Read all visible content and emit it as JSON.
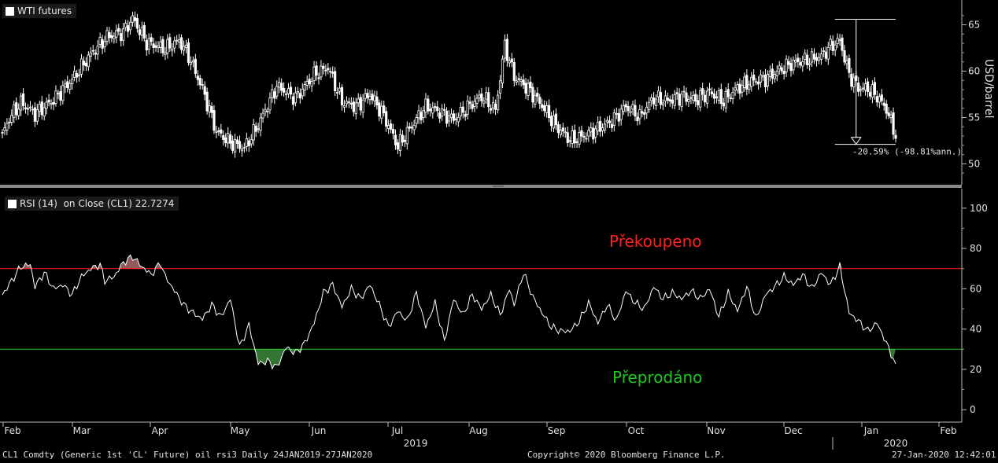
{
  "price_panel": {
    "legend": "WTI futures",
    "yaxis_label": "USD/barrel",
    "annotation": "-20.59% (-98.81%ann.)"
  },
  "rsi_panel": {
    "legend": "RSI (14)  on Close (CL1) 22.7274",
    "overbought_label": "Překoupeno",
    "oversold_label": "Přeprodáno",
    "overbought_color": "#ff2020",
    "oversold_color": "#1ec81e"
  },
  "footer": {
    "left": "CL1 Comdty (Generic 1st 'CL' Future) oil rsi3  Daily 24JAN2019-27JAN2020",
    "center": "Copyright© 2020 Bloomberg Finance L.P.",
    "right": "27-Jan-2020 12:42:01"
  },
  "chart_data": [
    {
      "type": "candlestick",
      "title": "WTI futures",
      "ylabel": "USD/barrel",
      "ylim": [
        48,
        67
      ],
      "yticks": [
        50,
        55,
        60,
        65
      ],
      "x_ticks": [
        "Feb",
        "Mar",
        "Apr",
        "May",
        "Jun",
        "Jul",
        "Aug",
        "Sep",
        "Oct",
        "Nov",
        "Dec",
        "Jan",
        "Feb"
      ],
      "year_labels": [
        "2019",
        "2020"
      ],
      "close_keypoints": [
        [
          0,
          53.1
        ],
        [
          3,
          54.9
        ],
        [
          8,
          56.6
        ],
        [
          14,
          55.4
        ],
        [
          22,
          56.9
        ],
        [
          30,
          59.1
        ],
        [
          38,
          61.8
        ],
        [
          45,
          63.7
        ],
        [
          52,
          64.2
        ],
        [
          56,
          65.7
        ],
        [
          62,
          63.1
        ],
        [
          70,
          62.4
        ],
        [
          76,
          63.3
        ],
        [
          80,
          61.7
        ],
        [
          86,
          58.1
        ],
        [
          92,
          53.5
        ],
        [
          98,
          52.3
        ],
        [
          104,
          51.7
        ],
        [
          110,
          54.2
        ],
        [
          118,
          58.4
        ],
        [
          126,
          57.1
        ],
        [
          134,
          59.6
        ],
        [
          140,
          60.4
        ],
        [
          146,
          56.7
        ],
        [
          152,
          56.2
        ],
        [
          158,
          57.5
        ],
        [
          164,
          55.2
        ],
        [
          170,
          51.9
        ],
        [
          176,
          54.1
        ],
        [
          182,
          56.2
        ],
        [
          188,
          55.6
        ],
        [
          194,
          54.8
        ],
        [
          200,
          56.1
        ],
        [
          206,
          57.3
        ],
        [
          212,
          55.8
        ],
        [
          216,
          62.8
        ],
        [
          220,
          59.4
        ],
        [
          226,
          58.1
        ],
        [
          232,
          56.3
        ],
        [
          238,
          54.1
        ],
        [
          244,
          52.6
        ],
        [
          250,
          53.0
        ],
        [
          256,
          53.8
        ],
        [
          262,
          54.6
        ],
        [
          268,
          56.2
        ],
        [
          274,
          55.1
        ],
        [
          280,
          57.1
        ],
        [
          286,
          56.8
        ],
        [
          292,
          57.3
        ],
        [
          298,
          56.9
        ],
        [
          304,
          57.7
        ],
        [
          310,
          56.8
        ],
        [
          316,
          58.2
        ],
        [
          322,
          58.9
        ],
        [
          328,
          59.2
        ],
        [
          334,
          60.1
        ],
        [
          340,
          60.9
        ],
        [
          346,
          61.2
        ],
        [
          352,
          61.6
        ],
        [
          356,
          62.7
        ],
        [
          360,
          63.3
        ],
        [
          364,
          59.6
        ],
        [
          368,
          58.2
        ],
        [
          372,
          58.1
        ],
        [
          376,
          57.3
        ],
        [
          380,
          55.9
        ],
        [
          384,
          53.1
        ]
      ],
      "annotation": {
        "text": "-20.59% (-98.81%ann.)",
        "from": 65.6,
        "to": 52.1
      }
    },
    {
      "type": "line",
      "title": "RSI (14)  on Close (CL1) 22.7274",
      "ylim": [
        -5,
        105
      ],
      "yticks": [
        0,
        20,
        40,
        60,
        80,
        100
      ],
      "overbought": 70,
      "oversold": 30,
      "last_value": 22.7274,
      "rsi_keypoints": [
        [
          0,
          57
        ],
        [
          4,
          64
        ],
        [
          8,
          71
        ],
        [
          12,
          72
        ],
        [
          14,
          61
        ],
        [
          18,
          68
        ],
        [
          22,
          60
        ],
        [
          26,
          62
        ],
        [
          30,
          57
        ],
        [
          34,
          66
        ],
        [
          38,
          70
        ],
        [
          42,
          72
        ],
        [
          44,
          64
        ],
        [
          48,
          66
        ],
        [
          52,
          73
        ],
        [
          56,
          76
        ],
        [
          60,
          71
        ],
        [
          64,
          67
        ],
        [
          68,
          73
        ],
        [
          70,
          66
        ],
        [
          74,
          59
        ],
        [
          78,
          52
        ],
        [
          82,
          48
        ],
        [
          86,
          45
        ],
        [
          90,
          52
        ],
        [
          94,
          46
        ],
        [
          98,
          55
        ],
        [
          102,
          31
        ],
        [
          106,
          42
        ],
        [
          110,
          23
        ],
        [
          114,
          24
        ],
        [
          118,
          21
        ],
        [
          122,
          31
        ],
        [
          126,
          28
        ],
        [
          130,
          33
        ],
        [
          134,
          43
        ],
        [
          138,
          58
        ],
        [
          142,
          62
        ],
        [
          146,
          51
        ],
        [
          150,
          60
        ],
        [
          154,
          55
        ],
        [
          158,
          62
        ],
        [
          162,
          52
        ],
        [
          166,
          41
        ],
        [
          170,
          49
        ],
        [
          174,
          44
        ],
        [
          178,
          58
        ],
        [
          182,
          41
        ],
        [
          186,
          53
        ],
        [
          190,
          34
        ],
        [
          194,
          55
        ],
        [
          198,
          47
        ],
        [
          202,
          57
        ],
        [
          206,
          50
        ],
        [
          210,
          57
        ],
        [
          214,
          47
        ],
        [
          218,
          60
        ],
        [
          220,
          52
        ],
        [
          224,
          68
        ],
        [
          228,
          56
        ],
        [
          232,
          48
        ],
        [
          236,
          41
        ],
        [
          240,
          39
        ],
        [
          244,
          39
        ],
        [
          248,
          44
        ],
        [
          252,
          53
        ],
        [
          256,
          43
        ],
        [
          260,
          52
        ],
        [
          264,
          44
        ],
        [
          268,
          59
        ],
        [
          272,
          53
        ],
        [
          276,
          50
        ],
        [
          280,
          61
        ],
        [
          284,
          55
        ],
        [
          288,
          58
        ],
        [
          292,
          55
        ],
        [
          296,
          59
        ],
        [
          300,
          55
        ],
        [
          304,
          60
        ],
        [
          308,
          46
        ],
        [
          312,
          58
        ],
        [
          316,
          49
        ],
        [
          320,
          61
        ],
        [
          324,
          45
        ],
        [
          328,
          57
        ],
        [
          332,
          61
        ],
        [
          336,
          66
        ],
        [
          340,
          62
        ],
        [
          344,
          67
        ],
        [
          348,
          60
        ],
        [
          352,
          68
        ],
        [
          356,
          62
        ],
        [
          360,
          71
        ],
        [
          364,
          48
        ],
        [
          368,
          44
        ],
        [
          372,
          39
        ],
        [
          376,
          43
        ],
        [
          380,
          33
        ],
        [
          384,
          22.7
        ]
      ]
    }
  ]
}
